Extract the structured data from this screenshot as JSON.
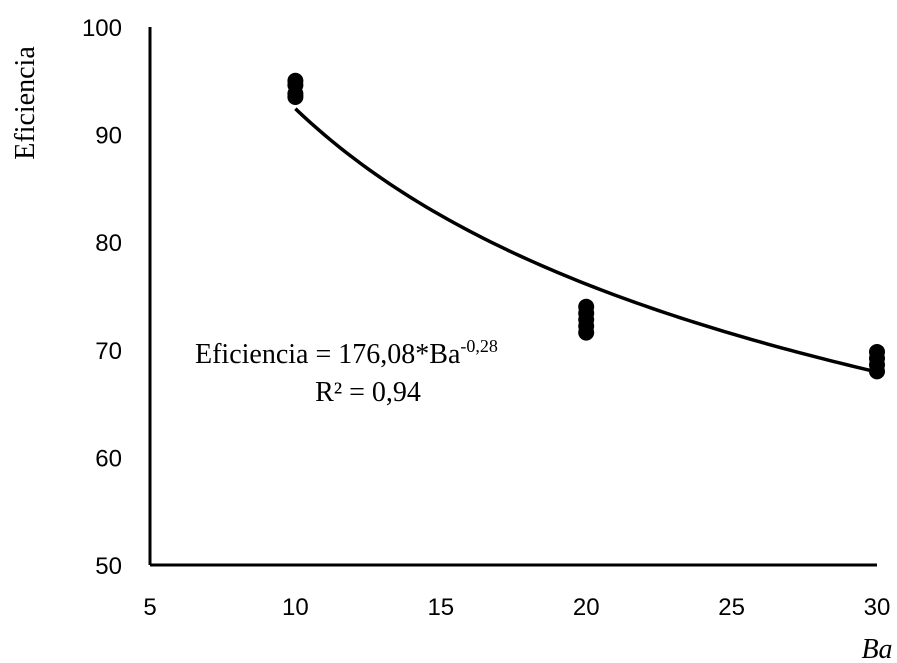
{
  "chart_data": {
    "type": "scatter",
    "xlabel": "Ba",
    "ylabel": "Eficiencia",
    "xlim": [
      5,
      30
    ],
    "ylim": [
      50,
      100
    ],
    "xticks": [
      5,
      10,
      15,
      20,
      25,
      30
    ],
    "yticks": [
      50,
      60,
      70,
      80,
      90,
      100
    ],
    "grid": false,
    "series": [
      {
        "points": [
          {
            "x": 10,
            "y": 95.0
          },
          {
            "x": 10,
            "y": 94.6
          },
          {
            "x": 10,
            "y": 93.8
          },
          {
            "x": 10,
            "y": 93.5
          },
          {
            "x": 20,
            "y": 74.0
          },
          {
            "x": 20,
            "y": 73.4
          },
          {
            "x": 20,
            "y": 72.8
          },
          {
            "x": 20,
            "y": 72.2
          },
          {
            "x": 20,
            "y": 71.6
          },
          {
            "x": 30,
            "y": 69.8
          },
          {
            "x": 30,
            "y": 69.2
          },
          {
            "x": 30,
            "y": 68.6
          },
          {
            "x": 30,
            "y": 68.0
          }
        ]
      }
    ],
    "trendline": {
      "type": "power",
      "coefficient": 176.08,
      "exponent": -0.28,
      "x_range": [
        10,
        30
      ],
      "equation_text": "Eficiencia = 176,08*Ba",
      "equation_exponent": "-0,28",
      "r2_text": "R² = 0,94"
    },
    "colors": {
      "points": "#000000",
      "line": "#000000",
      "axes": "#000000"
    }
  }
}
